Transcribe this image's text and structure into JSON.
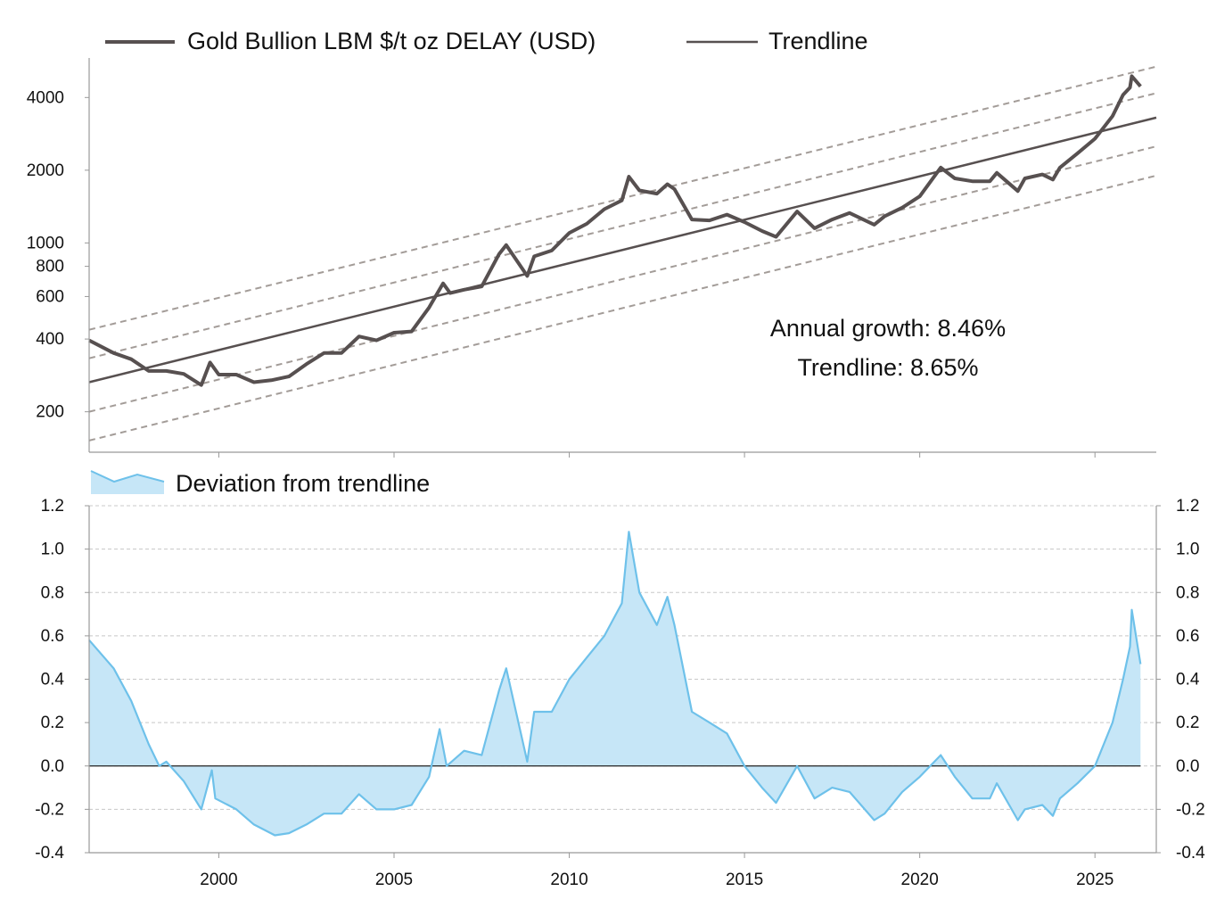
{
  "chart_data": [
    {
      "type": "line",
      "log_y": true,
      "xlim": [
        1996.3,
        2026.75
      ],
      "ylim": [
        136,
        5830
      ],
      "yticks": [
        200,
        400,
        600,
        800,
        1000,
        2000,
        4000
      ],
      "annotations": [
        "Annual growth: 8.46%",
        "Trendline: 8.65%"
      ],
      "series": [
        {
          "name": "Gold Bullion LBM $/t oz DELAY (USD)",
          "color": "#575050",
          "x": [
            1996.3,
            1997,
            1997.5,
            1998,
            1998.5,
            1999,
            1999.5,
            1999.75,
            2000,
            2000.5,
            2001,
            2001.5,
            2002,
            2002.5,
            2003,
            2003.5,
            2004,
            2004.5,
            2005,
            2005.5,
            2006,
            2006.4,
            2006.6,
            2007,
            2007.5,
            2008,
            2008.2,
            2008.8,
            2009,
            2009.5,
            2010,
            2010.5,
            2011,
            2011.5,
            2011.7,
            2012,
            2012.5,
            2012.8,
            2013,
            2013.5,
            2014,
            2014.5,
            2015,
            2015.5,
            2015.9,
            2016.5,
            2017,
            2017.5,
            2018,
            2018.7,
            2019,
            2019.5,
            2020,
            2020.6,
            2021,
            2021.5,
            2022,
            2022.2,
            2022.8,
            2023,
            2023.5,
            2023.8,
            2024,
            2024.5,
            2025,
            2025.5,
            2025.8,
            2026,
            2026.05,
            2026.3
          ],
          "values": [
            395,
            350,
            330,
            295,
            295,
            287,
            258,
            320,
            285,
            285,
            265,
            270,
            280,
            315,
            350,
            350,
            410,
            395,
            425,
            430,
            540,
            680,
            620,
            640,
            660,
            900,
            980,
            730,
            880,
            930,
            1100,
            1200,
            1380,
            1500,
            1880,
            1650,
            1600,
            1750,
            1670,
            1250,
            1240,
            1310,
            1220,
            1120,
            1060,
            1350,
            1150,
            1250,
            1330,
            1190,
            1290,
            1400,
            1560,
            2050,
            1850,
            1800,
            1800,
            1950,
            1640,
            1850,
            1920,
            1830,
            2050,
            2350,
            2700,
            3350,
            4100,
            4400,
            4900,
            4450
          ]
        },
        {
          "name": "Trendline",
          "color": "#575050",
          "x": [
            1996.3,
            2026.75
          ],
          "values": [
            265,
            3300
          ]
        }
      ],
      "bands_color": "#a39c98",
      "bands": [
        {
          "x": [
            1996.3,
            2026.75
          ],
          "values": [
            437,
            5370
          ]
        },
        {
          "x": [
            1996.3,
            2026.75
          ],
          "values": [
            333,
            4170
          ]
        },
        {
          "x": [
            1996.3,
            2026.75
          ],
          "values": [
            200,
            2510
          ]
        },
        {
          "x": [
            1996.3,
            2026.75
          ],
          "values": [
            152,
            1900
          ]
        }
      ]
    },
    {
      "type": "area",
      "grid": true,
      "xlim": [
        1996.3,
        2026.75
      ],
      "ylim": [
        -0.4,
        1.2
      ],
      "xticks": [
        2000,
        2005,
        2010,
        2015,
        2020,
        2025
      ],
      "yticks": [
        -0.4,
        -0.2,
        {
          "value": 0,
          "label": "0.0"
        },
        0.2,
        0.4,
        0.6,
        0.8,
        {
          "value": 1,
          "label": "1.0"
        },
        1.2
      ],
      "series": [
        {
          "name": "Deviation from trendline",
          "color": "#6ec1ea",
          "fill": "#c6e6f7",
          "x": [
            1996.3,
            1997,
            1997.5,
            1998,
            1998.3,
            1998.5,
            1999,
            1999.5,
            1999.8,
            1999.9,
            2000.5,
            2001,
            2001.6,
            2002,
            2002.5,
            2003,
            2003.5,
            2004,
            2004.5,
            2005,
            2005.5,
            2006,
            2006.3,
            2006.5,
            2007,
            2007.5,
            2008,
            2008.2,
            2008.8,
            2009,
            2009.5,
            2010,
            2010.5,
            2011,
            2011.5,
            2011.7,
            2012,
            2012.5,
            2012.8,
            2013,
            2013.5,
            2014,
            2014.5,
            2015,
            2015.5,
            2015.9,
            2016.5,
            2017,
            2017.5,
            2018,
            2018.7,
            2019,
            2019.5,
            2020,
            2020.6,
            2021,
            2021.5,
            2022,
            2022.2,
            2022.8,
            2023,
            2023.5,
            2023.8,
            2024,
            2024.5,
            2025,
            2025.5,
            2025.8,
            2026,
            2026.05,
            2026.3
          ],
          "values": [
            0.58,
            0.45,
            0.3,
            0.1,
            0.0,
            0.02,
            -0.07,
            -0.2,
            -0.02,
            -0.15,
            -0.2,
            -0.27,
            -0.32,
            -0.31,
            -0.27,
            -0.22,
            -0.22,
            -0.13,
            -0.2,
            -0.2,
            -0.18,
            -0.05,
            0.17,
            0.0,
            0.07,
            0.05,
            0.35,
            0.45,
            0.02,
            0.25,
            0.25,
            0.4,
            0.5,
            0.6,
            0.75,
            1.08,
            0.8,
            0.65,
            0.78,
            0.65,
            0.25,
            0.2,
            0.15,
            0.0,
            -0.1,
            -0.17,
            0.0,
            -0.15,
            -0.1,
            -0.12,
            -0.25,
            -0.22,
            -0.12,
            -0.05,
            0.05,
            -0.05,
            -0.15,
            -0.15,
            -0.08,
            -0.25,
            -0.2,
            -0.18,
            -0.23,
            -0.15,
            -0.08,
            0.0,
            0.2,
            0.4,
            0.55,
            0.72,
            0.47
          ]
        }
      ]
    }
  ]
}
